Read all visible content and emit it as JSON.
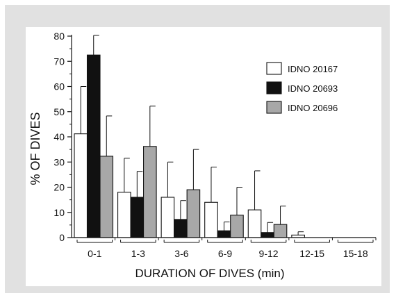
{
  "chart_data": {
    "type": "bar",
    "title": "",
    "xlabel": "DURATION OF DIVES (min)",
    "ylabel": "% OF DIVES",
    "ylim": [
      0,
      80
    ],
    "yticks": [
      0,
      10,
      20,
      30,
      40,
      50,
      60,
      70,
      80
    ],
    "categories": [
      "0-1",
      "1-3",
      "3-6",
      "6-9",
      "9-12",
      "12-15",
      "15-18"
    ],
    "legend_position": "top-right",
    "error_bars": "upper",
    "series": [
      {
        "name": "IDNO 20167",
        "color": "#ffffff",
        "values": [
          41.2,
          18,
          16,
          14,
          11,
          1,
          0
        ],
        "errors": [
          18.8,
          13.5,
          14,
          14,
          15.5,
          1.3,
          0
        ]
      },
      {
        "name": "IDNO 20693",
        "color": "#111111",
        "values": [
          72.5,
          16,
          7.2,
          2.7,
          2,
          0,
          0
        ],
        "errors": [
          7.8,
          10.3,
          7.5,
          3.5,
          4,
          0,
          0
        ]
      },
      {
        "name": "IDNO 20696",
        "color": "#a8a8a8",
        "values": [
          32.3,
          36.2,
          19,
          8.9,
          5.2,
          0,
          0
        ],
        "errors": [
          16,
          16,
          16,
          11.1,
          7.3,
          0,
          0
        ]
      }
    ]
  }
}
